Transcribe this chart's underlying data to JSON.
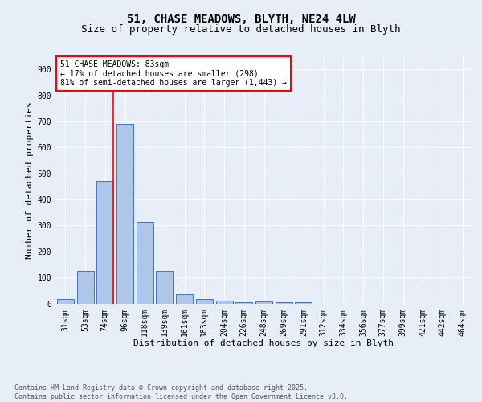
{
  "title_line1": "51, CHASE MEADOWS, BLYTH, NE24 4LW",
  "title_line2": "Size of property relative to detached houses in Blyth",
  "xlabel": "Distribution of detached houses by size in Blyth",
  "ylabel": "Number of detached properties",
  "bin_labels": [
    "31sqm",
    "53sqm",
    "74sqm",
    "96sqm",
    "118sqm",
    "139sqm",
    "161sqm",
    "183sqm",
    "204sqm",
    "226sqm",
    "248sqm",
    "269sqm",
    "291sqm",
    "312sqm",
    "334sqm",
    "356sqm",
    "377sqm",
    "399sqm",
    "421sqm",
    "442sqm",
    "464sqm"
  ],
  "bar_values": [
    18,
    125,
    470,
    690,
    315,
    125,
    35,
    18,
    10,
    5,
    8,
    5,
    5,
    0,
    0,
    0,
    0,
    0,
    0,
    0,
    0
  ],
  "bar_color": "#aec6e8",
  "bar_edge_color": "#4472c4",
  "vline_color": "#ff0000",
  "annotation_text": "51 CHASE MEADOWS: 83sqm\n← 17% of detached houses are smaller (298)\n81% of semi-detached houses are larger (1,443) →",
  "annotation_box_color": "#ffffff",
  "annotation_box_edge_color": "#ff0000",
  "ylim": [
    0,
    950
  ],
  "yticks": [
    0,
    100,
    200,
    300,
    400,
    500,
    600,
    700,
    800,
    900
  ],
  "background_color": "#e8eef8",
  "plot_background_color": "#e8eef8",
  "grid_color": "#ffffff",
  "footer_text": "Contains HM Land Registry data © Crown copyright and database right 2025.\nContains public sector information licensed under the Open Government Licence v3.0.",
  "title_fontsize": 10,
  "subtitle_fontsize": 9,
  "axis_label_fontsize": 8,
  "tick_fontsize": 7,
  "annot_fontsize": 7
}
